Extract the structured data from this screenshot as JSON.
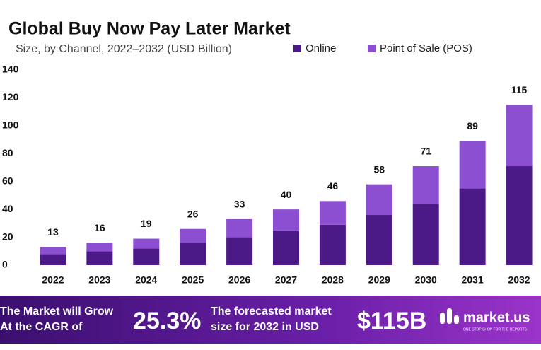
{
  "chart_data": {
    "type": "stacked_bar",
    "title": "Global Buy Now Pay Later Market",
    "subtitle": "Size, by Channel, 2022–2032 (USD Billion)",
    "categories": [
      "2022",
      "2023",
      "2024",
      "2025",
      "2026",
      "2027",
      "2028",
      "2029",
      "2030",
      "2031",
      "2032"
    ],
    "series": [
      {
        "name": "Online",
        "color": "#4b1a87",
        "values": [
          8,
          10,
          12,
          16,
          20,
          25,
          29,
          36,
          44,
          55,
          71
        ]
      },
      {
        "name": "Point of Sale (POS)",
        "color": "#8c4fd1",
        "values": [
          5,
          6,
          7,
          10,
          13,
          15,
          17,
          22,
          27,
          34,
          44
        ]
      }
    ],
    "totals": [
      13,
      16,
      19,
      26,
      33,
      40,
      46,
      58,
      71,
      89,
      115
    ],
    "ylim": [
      0,
      140
    ],
    "yticks": [
      0,
      20,
      40,
      60,
      80,
      100,
      120,
      140
    ],
    "grid": false,
    "legend": "top"
  },
  "footer": {
    "cagr_text": [
      "The Market will Grow",
      "At the CAGR of"
    ],
    "cagr": "25.3%",
    "forecast_text": [
      "The forecasted market",
      "size for 2032 in USD"
    ],
    "forecast": "$115B",
    "brand": "market.us",
    "tagline": "ONE STOP SHOP FOR THE REPORTS"
  }
}
